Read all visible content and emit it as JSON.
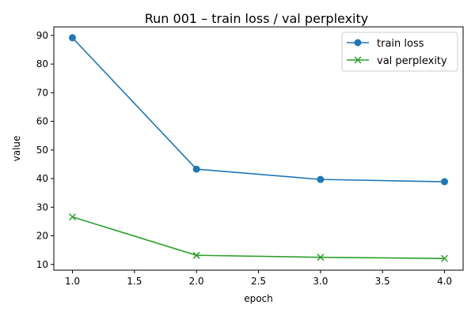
{
  "chart_data": {
    "type": "line",
    "title": "Run 001 – train loss / val perplexity",
    "xlabel": "epoch",
    "ylabel": "value",
    "xlim": [
      0.85,
      4.15
    ],
    "ylim": [
      8.0,
      93.0
    ],
    "xticks": [
      1.0,
      1.5,
      2.0,
      2.5,
      3.0,
      3.5,
      4.0
    ],
    "xtick_labels": [
      "1.0",
      "1.5",
      "2.0",
      "2.5",
      "3.0",
      "3.5",
      "4.0"
    ],
    "yticks": [
      10,
      20,
      30,
      40,
      50,
      60,
      70,
      80,
      90
    ],
    "ytick_labels": [
      "10",
      "20",
      "30",
      "40",
      "50",
      "60",
      "70",
      "80",
      "90"
    ],
    "grid": false,
    "legend_position": "top-right",
    "x": [
      1.0,
      2.0,
      3.0,
      4.0
    ],
    "series": [
      {
        "name": "train loss",
        "values": [
          89.2,
          43.3,
          39.7,
          38.9
        ],
        "color": "#1f77b4",
        "marker": "circle"
      },
      {
        "name": "val perplexity",
        "values": [
          26.6,
          13.2,
          12.5,
          12.1
        ],
        "color": "#2ca02c",
        "marker": "x"
      }
    ]
  }
}
